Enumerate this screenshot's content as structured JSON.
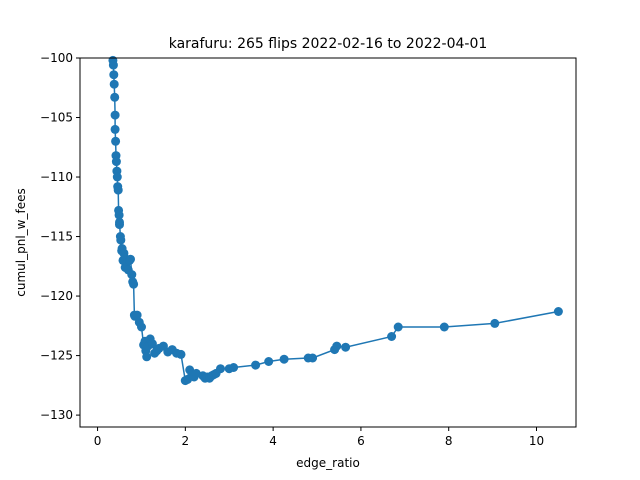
{
  "chart_data": {
    "type": "line",
    "title": "karafuru: 265 flips 2022-02-16 to 2022-04-01",
    "xlabel": "edge_ratio",
    "ylabel": "cumul_pnl_w_fees",
    "xlim": [
      -0.4,
      10.9
    ],
    "ylim": [
      -131,
      -100
    ],
    "xticks": [
      0,
      2,
      4,
      6,
      8,
      10
    ],
    "yticks": [
      -100,
      -105,
      -110,
      -115,
      -120,
      -125,
      -130
    ],
    "grid": false,
    "legend": "none",
    "line_color": "#1f77b4",
    "marker_color": "#1f77b4",
    "series": [
      {
        "x": [
          0.35,
          0.36,
          0.37,
          0.38,
          0.39,
          0.4,
          0.4,
          0.41,
          0.42,
          0.43,
          0.44,
          0.45,
          0.46,
          0.47,
          0.48,
          0.49,
          0.5,
          0.5,
          0.52,
          0.53,
          0.55,
          0.56,
          0.58,
          0.6,
          0.62,
          0.63,
          0.65,
          0.7,
          0.73,
          0.75,
          0.78,
          0.8,
          0.82,
          0.84,
          0.85,
          0.9,
          0.95,
          1.0,
          1.05,
          1.08,
          1.1,
          1.12,
          1.15,
          1.2,
          1.25,
          1.3,
          1.35,
          1.4,
          1.5,
          1.6,
          1.7,
          1.8,
          1.9,
          2.0,
          2.05,
          2.1,
          2.15,
          2.2,
          2.25,
          2.4,
          2.45,
          2.5,
          2.55,
          2.6,
          2.65,
          2.7,
          2.8,
          3.0,
          3.1,
          3.6,
          3.9,
          4.25,
          4.8,
          4.9,
          5.4,
          5.45,
          5.65,
          6.7,
          6.85,
          7.9,
          9.05,
          10.5
        ],
        "y": [
          -100.2,
          -100.6,
          -101.4,
          -102.2,
          -103.3,
          -104.8,
          -106.0,
          -107.0,
          -108.2,
          -108.7,
          -109.5,
          -110.0,
          -110.8,
          -111.1,
          -112.8,
          -113.2,
          -114.0,
          -113.8,
          -115.0,
          -115.3,
          -116.2,
          -116.0,
          -117.0,
          -116.4,
          -116.8,
          -117.6,
          -117.3,
          -117.8,
          -117.0,
          -116.9,
          -118.2,
          -118.8,
          -119.0,
          -121.6,
          -121.7,
          -121.6,
          -122.2,
          -122.6,
          -124.1,
          -123.8,
          -124.6,
          -125.1,
          -124.2,
          -123.6,
          -124.0,
          -124.8,
          -124.6,
          -124.4,
          -124.2,
          -124.7,
          -124.5,
          -124.8,
          -124.9,
          -127.1,
          -127.0,
          -126.2,
          -126.6,
          -126.8,
          -126.5,
          -126.7,
          -126.9,
          -126.8,
          -126.9,
          -126.7,
          -126.6,
          -126.5,
          -126.1,
          -126.1,
          -126.0,
          -125.8,
          -125.5,
          -125.3,
          -125.2,
          -125.2,
          -124.5,
          -124.2,
          -124.3,
          -123.4,
          -122.6,
          -122.6,
          -122.3,
          -121.3
        ]
      }
    ]
  }
}
